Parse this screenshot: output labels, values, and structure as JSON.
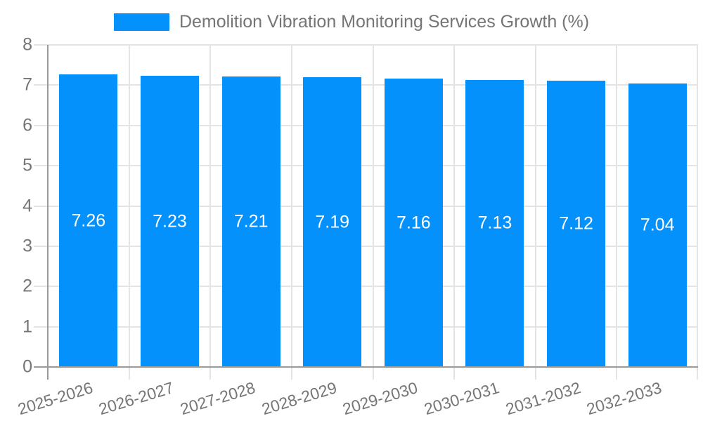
{
  "chart_data": {
    "type": "bar",
    "title": "Demolition Vibration Monitoring Services Growth (%)",
    "categories": [
      "2025-2026",
      "2026-2027",
      "2027-2028",
      "2028-2029",
      "2029-2030",
      "2030-2031",
      "2031-2032",
      "2032-2033"
    ],
    "values": [
      7.26,
      7.23,
      7.21,
      7.19,
      7.16,
      7.13,
      7.12,
      7.04
    ],
    "value_labels": [
      "7.26",
      "7.23",
      "7.21",
      "7.19",
      "7.16",
      "7.13",
      "7.12",
      "7.04"
    ],
    "xlabel": "",
    "ylabel": "",
    "ylim": [
      0,
      8
    ],
    "yticks": [
      0,
      1,
      2,
      3,
      4,
      5,
      6,
      7,
      8
    ],
    "grid": true,
    "legend_position": "top-center",
    "colors": {
      "bar": "#0591FB",
      "bar_value_text": "#FFFFFF",
      "axis_text": "#757575",
      "grid_line": "#E4E4E4",
      "axis_line": "#9A9A9A"
    }
  }
}
